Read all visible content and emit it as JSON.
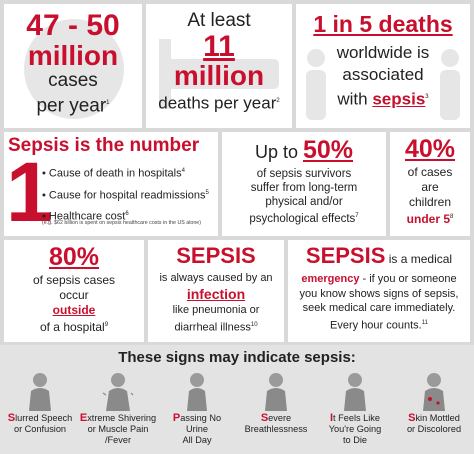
{
  "accent": "#c8102e",
  "p1": {
    "line1": "47 - 50",
    "line2": "million",
    "line3": "cases",
    "line4": "per year",
    "sup": "1"
  },
  "p2": {
    "line1": "At least",
    "line2": "11",
    "line3": "million",
    "line4": "deaths per year",
    "sup": "2"
  },
  "p3": {
    "line1": "1 in 5 deaths",
    "line2": "worldwide is",
    "line3": "associated",
    "line4a": "with ",
    "line4b": "sepsis",
    "sup": "3"
  },
  "p4": {
    "title": "Sepsis is the number",
    "big_number": "1",
    "items": [
      {
        "text": "Cause of death in hospitals",
        "sup": "4"
      },
      {
        "text": "Cause for hospital readmissions",
        "sup": "5"
      },
      {
        "text": "Healthcare cost",
        "sup": "6"
      }
    ],
    "footnote": "(e.g. $62 billion is spent on sepsis healthcare costs in the US alone)"
  },
  "p5": {
    "prefix": "Up to ",
    "value": "50%",
    "l1": "of sepsis survivors",
    "l2": "suffer from long-term",
    "l3": "physical and/or",
    "l4": "psychological effects",
    "sup": "7"
  },
  "p6": {
    "value": "40%",
    "l1": "of cases",
    "l2": "are",
    "l3": "children",
    "l4": "under 5",
    "sup": "8"
  },
  "p7": {
    "value": "80%",
    "l1": "of sepsis cases",
    "l2": "occur",
    "l3": "outside",
    "l4": "of a hospital",
    "sup": "9"
  },
  "p8": {
    "title": "SEPSIS",
    "l1": "is always caused by an",
    "l2": "infection",
    "l3": "like pneumonia or",
    "l4": "diarrheal illness",
    "sup": "10"
  },
  "p9": {
    "title": "SEPSIS",
    "t2": " is a medical",
    "l1a": "emergency",
    "l1b": " - if you or someone",
    "l2": "you know shows signs of sepsis,",
    "l3": "seek medical care immediately.",
    "l4": "Every hour counts.",
    "sup": "11"
  },
  "signs": {
    "header": "These signs may indicate sepsis:",
    "items": [
      {
        "letter": "S",
        "rest1": "lurred Speech",
        "line2": "or Confusion",
        "line3": "",
        "icon": "confused-person-icon"
      },
      {
        "letter": "E",
        "rest1": "xtreme Shivering",
        "line2": "or Muscle Pain",
        "line3": "/Fever",
        "icon": "shivering-person-icon"
      },
      {
        "letter": "P",
        "rest1": "assing No",
        "line2": "Urine",
        "line3": "All Day",
        "icon": "person-icon"
      },
      {
        "letter": "S",
        "rest1": "evere",
        "line2": "Breathlessness",
        "line3": "",
        "icon": "breathless-person-icon"
      },
      {
        "letter": "I",
        "rest1": "t Feels Like",
        "line2": "You're Going",
        "line3": "to Die",
        "icon": "distressed-person-icon"
      },
      {
        "letter": "S",
        "rest1": "kin Mottled",
        "line2": "or Discolored",
        "line3": "",
        "icon": "mottled-skin-person-icon"
      }
    ]
  }
}
